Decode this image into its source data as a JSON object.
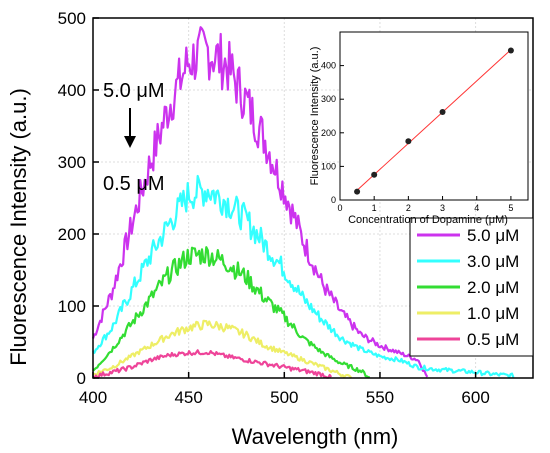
{
  "chart_data": [
    {
      "type": "line",
      "xlabel": "Wavelength (nm)",
      "ylabel": "Fluorescence Intensity (a.u.)",
      "xlim": [
        400,
        630
      ],
      "ylim": [
        0,
        500
      ],
      "xticks": [
        400,
        450,
        500,
        550,
        600
      ],
      "yticks": [
        0,
        100,
        200,
        300,
        400,
        500
      ],
      "grid": true,
      "legend_position": "right",
      "annotations": {
        "top": "5.0 μM",
        "bottom": "0.5 μM"
      },
      "series": [
        {
          "name": "5.0 μM",
          "color": "#cc33ee",
          "x": [
            400,
            410,
            420,
            430,
            440,
            450,
            460,
            470,
            480,
            490,
            500,
            510,
            520,
            530,
            540,
            550,
            560,
            570,
            575
          ],
          "y": [
            55,
            120,
            210,
            300,
            380,
            440,
            455,
            435,
            385,
            330,
            260,
            190,
            130,
            90,
            60,
            45,
            35,
            25,
            0
          ]
        },
        {
          "name": "3.0 μM",
          "color": "#33ffff",
          "x": [
            400,
            410,
            420,
            430,
            440,
            450,
            460,
            470,
            480,
            490,
            500,
            510,
            520,
            530,
            540,
            550,
            560,
            570,
            580,
            590,
            600,
            610,
            620
          ],
          "y": [
            35,
            70,
            120,
            170,
            215,
            255,
            262,
            245,
            220,
            185,
            150,
            110,
            80,
            55,
            40,
            30,
            25,
            15,
            12,
            10,
            8,
            5,
            3
          ]
        },
        {
          "name": "2.0 μM",
          "color": "#33dd33",
          "x": [
            400,
            410,
            420,
            430,
            440,
            450,
            460,
            470,
            480,
            490,
            500,
            510,
            520,
            530,
            540,
            545
          ],
          "y": [
            10,
            40,
            75,
            110,
            145,
            170,
            172,
            160,
            140,
            110,
            85,
            55,
            35,
            20,
            10,
            0
          ]
        },
        {
          "name": "1.0 μM",
          "color": "#eeee66",
          "x": [
            400,
            410,
            420,
            430,
            440,
            450,
            460,
            470,
            480,
            490,
            500,
            510,
            520,
            530,
            535
          ],
          "y": [
            5,
            15,
            30,
            45,
            60,
            70,
            75,
            70,
            60,
            45,
            35,
            25,
            15,
            5,
            0
          ]
        },
        {
          "name": "0.5 μM",
          "color": "#ee4499",
          "x": [
            400,
            410,
            420,
            430,
            440,
            450,
            460,
            470,
            480,
            490,
            500,
            510,
            520,
            525
          ],
          "y": [
            2,
            8,
            15,
            25,
            32,
            35,
            36,
            30,
            25,
            20,
            15,
            10,
            5,
            0
          ]
        }
      ]
    },
    {
      "type": "scatter",
      "xlabel": "Concentration of Dopamine (μM)",
      "ylabel": "Fluorescence Intensity (a.u.)",
      "xlim": [
        0,
        5.5
      ],
      "ylim": [
        0,
        500
      ],
      "xticks": [
        0,
        1,
        2,
        3,
        4,
        5
      ],
      "yticks": [
        0,
        100,
        200,
        300,
        400
      ],
      "fit_line": true,
      "x": [
        0.5,
        1,
        2,
        3,
        5
      ],
      "y": [
        25,
        75,
        175,
        262,
        445
      ]
    }
  ]
}
